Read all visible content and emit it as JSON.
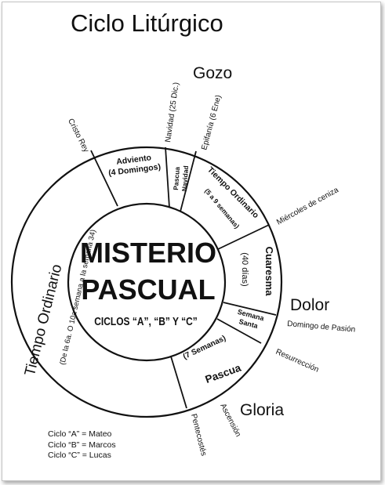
{
  "title": "Ciclo Litúrgico",
  "center": {
    "line1": "MISTERIO",
    "line2": "PASCUAL",
    "line3": "CICLOS “A”, “B” Y “C”"
  },
  "seasons": {
    "adviento": "Adviento",
    "adviento_sub": "(4 Domingos)",
    "pascua_navidad_1": "Pascua",
    "pascua_navidad_2": "Navidad",
    "tiempo_ord_short": "Tiempo Ordinario",
    "tiempo_ord_short_sub": "(5 a 9 semanas)",
    "cuaresma": "Cuaresma",
    "cuaresma_sub": "(40 días)",
    "semana_santa_1": "Semana",
    "semana_santa_2": "Santa",
    "pascua": "Pascua",
    "pascua_sub": "(7 Semanas)",
    "tiempo_ord_long": "Tiempo Ordinario",
    "tiempo_ord_long_sub": "(De la 6a. O 10a semana a la semana 34)"
  },
  "moods": {
    "gozo": "Gozo",
    "dolor": "Dolor",
    "gloria": "Gloria"
  },
  "events": {
    "navidad": "Navidad (25 Dic.)",
    "epifania": "Epifanía (6 Ene)",
    "cristo_rey": "Cristo Rey",
    "miercoles": "Miércoles de ceniza",
    "domingo_pasion": "Domingo de Pasión",
    "resurreccion": "Resurrección",
    "ascension": "Ascensión",
    "pentecostes": "Pentecostés"
  },
  "legend": [
    "Ciclo “A” = Mateo",
    "Ciclo “B” = Marcos",
    "Ciclo “C” = Lucas"
  ]
}
